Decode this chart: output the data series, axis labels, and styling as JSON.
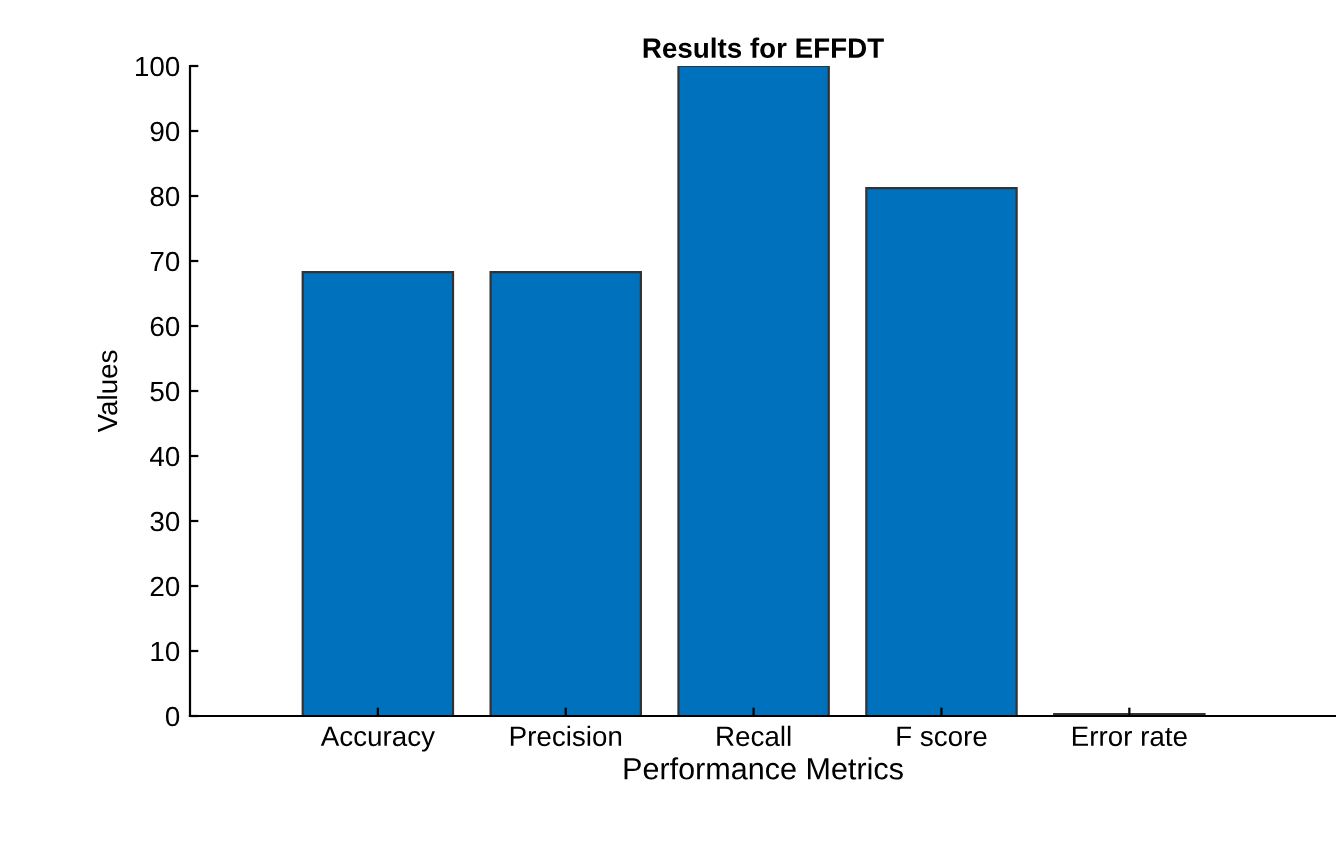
{
  "chart_data": {
    "type": "bar",
    "title": "Results for EFFDT",
    "xlabel": "Performance Metrics",
    "ylabel": "Values",
    "categories": [
      "Accuracy",
      "Precision",
      "Recall",
      "F score",
      "Error rate"
    ],
    "values": [
      68.3,
      68.3,
      100,
      81.2,
      0.3
    ],
    "color": "#0072bd",
    "ylim": [
      0,
      100
    ],
    "yticks": [
      0,
      10,
      20,
      30,
      40,
      50,
      60,
      70,
      80,
      90,
      100
    ],
    "grid": false,
    "legend": false
  }
}
